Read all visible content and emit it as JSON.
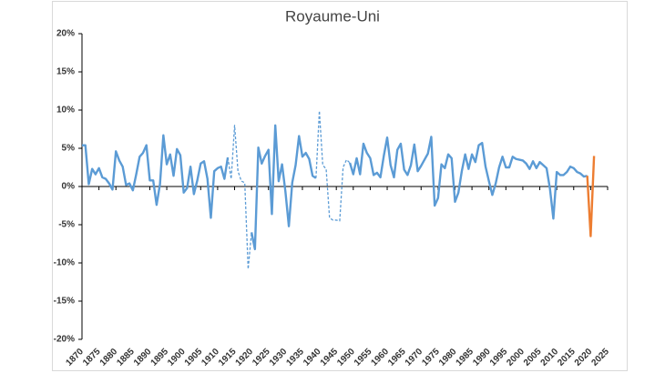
{
  "chart_data": {
    "type": "line",
    "title": "Royaume-Uni",
    "x": [
      1870,
      1871,
      1872,
      1873,
      1874,
      1875,
      1876,
      1877,
      1878,
      1879,
      1880,
      1881,
      1882,
      1883,
      1884,
      1885,
      1886,
      1887,
      1888,
      1889,
      1890,
      1891,
      1892,
      1893,
      1894,
      1895,
      1896,
      1897,
      1898,
      1899,
      1900,
      1901,
      1902,
      1903,
      1904,
      1905,
      1906,
      1907,
      1908,
      1909,
      1910,
      1911,
      1912,
      1913,
      1914,
      1915,
      1916,
      1917,
      1918,
      1919,
      1920,
      1921,
      1922,
      1923,
      1924,
      1925,
      1926,
      1927,
      1928,
      1929,
      1930,
      1931,
      1932,
      1933,
      1934,
      1935,
      1936,
      1937,
      1938,
      1939,
      1940,
      1941,
      1942,
      1943,
      1944,
      1945,
      1946,
      1947,
      1948,
      1949,
      1950,
      1951,
      1952,
      1953,
      1954,
      1955,
      1956,
      1957,
      1958,
      1959,
      1960,
      1961,
      1962,
      1963,
      1964,
      1965,
      1966,
      1967,
      1968,
      1969,
      1970,
      1971,
      1972,
      1973,
      1974,
      1975,
      1976,
      1977,
      1978,
      1979,
      1980,
      1981,
      1982,
      1983,
      1984,
      1985,
      1986,
      1987,
      1988,
      1989,
      1990,
      1991,
      1992,
      1993,
      1994,
      1995,
      1996,
      1997,
      1998,
      1999,
      2000,
      2001,
      2002,
      2003,
      2004,
      2005,
      2006,
      2007,
      2008,
      2009,
      2010,
      2011,
      2012,
      2013,
      2014,
      2015,
      2016,
      2017,
      2018,
      2019,
      2020,
      2021
    ],
    "series": [
      {
        "color": "#5b9bd5",
        "dashed": false,
        "values": [
          5.4,
          5.4,
          0.3,
          2.3,
          1.6,
          2.4,
          1.2,
          1.0,
          0.4,
          -0.4,
          4.6,
          3.4,
          2.6,
          0.2,
          0.4,
          -0.5,
          1.6,
          3.9,
          4.4,
          5.4,
          0.8,
          0.8,
          -2.4,
          0.3,
          6.7,
          2.9,
          4.2,
          1.4,
          4.9,
          4.1,
          -0.8,
          -0.2,
          2.6,
          -1.0,
          0.8,
          3.0,
          3.3,
          1.0,
          -4.1,
          2.0,
          2.4,
          2.6,
          1.0,
          3.8,
          null,
          null,
          null,
          null,
          null,
          null,
          -6.0,
          -8.2,
          5.1,
          3.0,
          4.0,
          4.8,
          -3.6,
          8.0,
          0.7,
          2.9,
          -0.7,
          -5.2,
          0.5,
          2.8,
          6.6,
          3.9,
          4.4,
          3.6,
          1.4,
          1.1,
          null,
          null,
          null,
          null,
          null,
          null,
          null,
          null,
          null,
          3.1,
          1.6,
          3.7,
          1.6,
          5.6,
          4.4,
          3.7,
          1.5,
          1.8,
          1.2,
          4.0,
          6.4,
          2.8,
          1.2,
          4.8,
          5.6,
          2.2,
          1.5,
          2.8,
          5.5,
          2.0,
          2.7,
          3.5,
          4.3,
          6.5,
          -2.5,
          -1.5,
          2.9,
          2.4,
          4.2,
          3.7,
          -2.0,
          -0.8,
          2.0,
          4.2,
          2.3,
          4.2,
          3.2,
          5.4,
          5.7,
          2.6,
          0.7,
          -1.1,
          0.4,
          2.5,
          3.9,
          2.5,
          2.5,
          3.9,
          3.6,
          3.5,
          3.4,
          3.0,
          2.3,
          3.3,
          2.4,
          3.2,
          2.8,
          2.4,
          -0.3,
          -4.2,
          1.9,
          1.5,
          1.5,
          1.9,
          2.6,
          2.4,
          1.9,
          1.7,
          1.3,
          1.4,
          null,
          null
        ]
      },
      {
        "color": "#5b9bd5",
        "dashed": true,
        "values": [
          null,
          null,
          null,
          null,
          null,
          null,
          null,
          null,
          null,
          null,
          null,
          null,
          null,
          null,
          null,
          null,
          null,
          null,
          null,
          null,
          null,
          null,
          null,
          null,
          null,
          null,
          null,
          null,
          null,
          null,
          null,
          null,
          null,
          null,
          null,
          null,
          null,
          null,
          null,
          null,
          null,
          null,
          null,
          3.8,
          1.0,
          8.0,
          2.0,
          0.7,
          0.5,
          -10.8,
          -6.0,
          null,
          null,
          null,
          null,
          null,
          null,
          null,
          null,
          null,
          null,
          null,
          null,
          null,
          null,
          null,
          null,
          null,
          null,
          1.1,
          9.9,
          2.8,
          2.3,
          -4.1,
          -4.4,
          -4.4,
          -4.5,
          2.5,
          3.5,
          3.1,
          null,
          null,
          null,
          null,
          null,
          null,
          null,
          null,
          null,
          null,
          null,
          null,
          null,
          null,
          null,
          null,
          null,
          null,
          null,
          null,
          null,
          null,
          null,
          null,
          null,
          null,
          null,
          null,
          null,
          null,
          null,
          null,
          null,
          null,
          null,
          null,
          null,
          null,
          null,
          null,
          null,
          null,
          null,
          null,
          null,
          null,
          null,
          null,
          null,
          null,
          null,
          null,
          null,
          null,
          null,
          null,
          null,
          null,
          null,
          null,
          null,
          null,
          null,
          null,
          null,
          null,
          null,
          null,
          null,
          null,
          null,
          null
        ]
      },
      {
        "color": "#ed7d31",
        "dashed": false,
        "values": [
          null,
          null,
          null,
          null,
          null,
          null,
          null,
          null,
          null,
          null,
          null,
          null,
          null,
          null,
          null,
          null,
          null,
          null,
          null,
          null,
          null,
          null,
          null,
          null,
          null,
          null,
          null,
          null,
          null,
          null,
          null,
          null,
          null,
          null,
          null,
          null,
          null,
          null,
          null,
          null,
          null,
          null,
          null,
          null,
          null,
          null,
          null,
          null,
          null,
          null,
          null,
          null,
          null,
          null,
          null,
          null,
          null,
          null,
          null,
          null,
          null,
          null,
          null,
          null,
          null,
          null,
          null,
          null,
          null,
          null,
          null,
          null,
          null,
          null,
          null,
          null,
          null,
          null,
          null,
          null,
          null,
          null,
          null,
          null,
          null,
          null,
          null,
          null,
          null,
          null,
          null,
          null,
          null,
          null,
          null,
          null,
          null,
          null,
          null,
          null,
          null,
          null,
          null,
          null,
          null,
          null,
          null,
          null,
          null,
          null,
          null,
          null,
          null,
          null,
          null,
          null,
          null,
          null,
          null,
          null,
          null,
          null,
          null,
          null,
          null,
          null,
          null,
          null,
          null,
          null,
          null,
          null,
          null,
          null,
          null,
          null,
          null,
          null,
          null,
          null,
          null,
          null,
          null,
          null,
          null,
          null,
          null,
          null,
          null,
          1.4,
          -6.5,
          4.0
        ]
      }
    ],
    "xlim": [
      1870,
      2025
    ],
    "xticks": [
      1870,
      1875,
      1880,
      1885,
      1890,
      1895,
      1900,
      1905,
      1910,
      1915,
      1920,
      1925,
      1930,
      1935,
      1940,
      1945,
      1950,
      1955,
      1960,
      1965,
      1970,
      1975,
      1980,
      1985,
      1990,
      1995,
      2000,
      2005,
      2010,
      2015,
      2020,
      2025
    ],
    "ylim": [
      -20,
      20
    ],
    "yticks": [
      {
        "value": -20,
        "label": "-20%"
      },
      {
        "value": -15,
        "label": "-15%"
      },
      {
        "value": -10,
        "label": "-10%"
      },
      {
        "value": -5,
        "label": "-5%"
      },
      {
        "value": 0,
        "label": "0%"
      },
      {
        "value": 5,
        "label": "5%"
      },
      {
        "value": 10,
        "label": "10%"
      },
      {
        "value": 15,
        "label": "15%"
      },
      {
        "value": 20,
        "label": "20%"
      }
    ],
    "grid": false
  }
}
